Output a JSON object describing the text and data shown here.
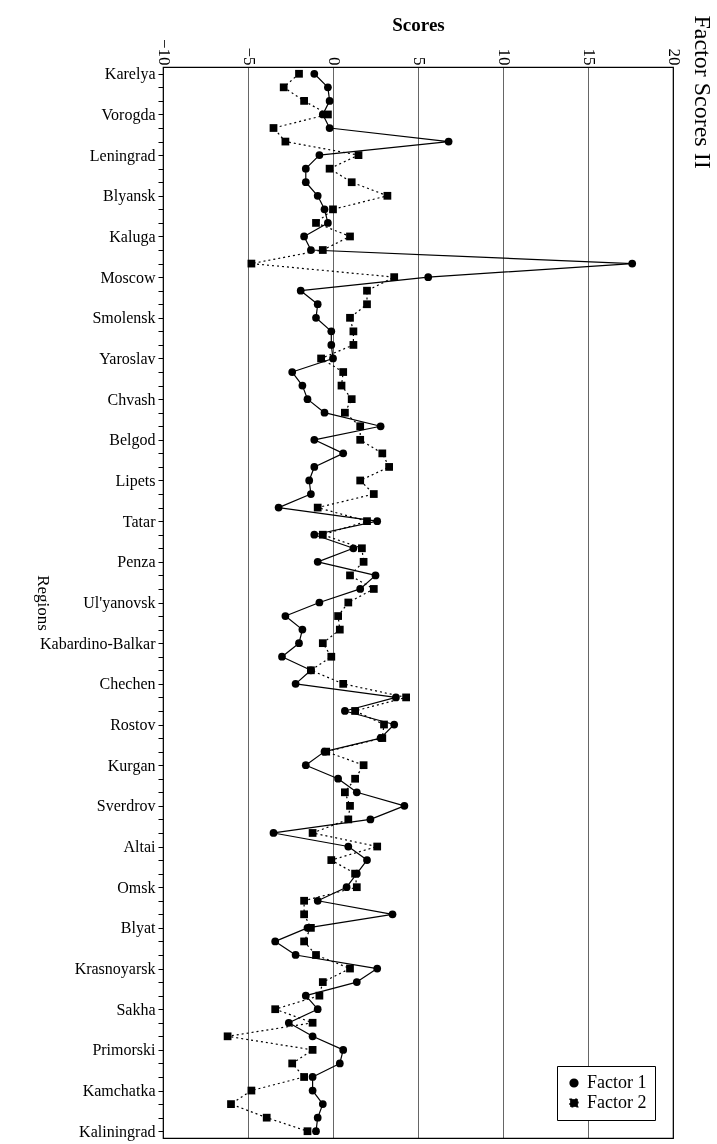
{
  "chart_data": {
    "type": "line",
    "title": "Factor Scores II",
    "xlabel": "Scores",
    "ylabel": "Regions",
    "orientation": "horizontal",
    "xlim": [
      -10,
      20
    ],
    "xticks": [
      -10,
      -5,
      0,
      5,
      10,
      15,
      20
    ],
    "grid": "x",
    "legend": "bottom right",
    "categories": [
      "Karelya",
      null,
      null,
      "Vorogda",
      null,
      null,
      "Leningrad",
      null,
      null,
      "Blyansk",
      null,
      null,
      "Kaluga",
      null,
      null,
      "Moscow",
      null,
      null,
      "Smolensk",
      null,
      null,
      "Yaroslav",
      null,
      null,
      "Chvash",
      null,
      null,
      "Belgod",
      null,
      null,
      "Lipets",
      null,
      null,
      "Tatar",
      null,
      null,
      "Penza",
      null,
      null,
      "Ul'yanovsk",
      null,
      null,
      "Kabardino-Balkar",
      null,
      null,
      "Chechen",
      null,
      null,
      "Rostov",
      null,
      null,
      "Kurgan",
      null,
      null,
      "Sverdrov",
      null,
      null,
      "Altai",
      null,
      null,
      "Omsk",
      null,
      null,
      "Blyat",
      null,
      null,
      "Krasnoyarsk",
      null,
      null,
      "Sakha",
      null,
      null,
      "Primorski",
      null,
      null,
      "Kamchatka",
      null,
      null,
      "Kaliningrad"
    ],
    "series": [
      {
        "name": "Factor 1",
        "color": "#000000",
        "marker": "circle",
        "line_style": "solid",
        "values": [
          -1.1,
          -0.3,
          -0.2,
          -0.6,
          -0.2,
          6.8,
          -0.8,
          -1.6,
          -1.6,
          -0.9,
          -0.5,
          -0.3,
          -1.7,
          -1.3,
          17.6,
          5.6,
          -1.9,
          -0.9,
          -1.0,
          -0.1,
          -0.1,
          0.0,
          -2.4,
          -1.8,
          -1.5,
          -0.5,
          2.8,
          -1.1,
          0.6,
          -1.1,
          -1.4,
          -1.3,
          -3.2,
          2.6,
          -1.1,
          1.2,
          -0.9,
          2.5,
          1.6,
          -0.8,
          -2.8,
          -1.8,
          -2.0,
          -3.0,
          -1.3,
          -2.2,
          3.7,
          0.7,
          3.6,
          2.8,
          -0.5,
          -1.6,
          0.3,
          1.4,
          4.2,
          2.2,
          -3.5,
          0.9,
          2.0,
          1.4,
          0.8,
          -0.9,
          3.5,
          -1.5,
          -3.4,
          -2.2,
          2.6,
          1.4,
          -1.6,
          -0.9,
          -2.6,
          -1.2,
          0.6,
          0.4,
          -1.2,
          -1.2,
          -0.6,
          -0.9,
          -1.0
        ]
      },
      {
        "name": "Factor 2",
        "color": "#000000",
        "marker": "square",
        "line_style": "dotted",
        "values": [
          -2.0,
          -2.9,
          -1.7,
          -0.3,
          -3.5,
          -2.8,
          1.5,
          -0.2,
          1.1,
          3.2,
          0.0,
          -1.0,
          1.0,
          -0.6,
          -4.8,
          3.6,
          2.0,
          2.0,
          1.0,
          1.2,
          1.2,
          -0.7,
          0.6,
          0.5,
          1.1,
          0.7,
          1.6,
          1.6,
          2.9,
          3.3,
          1.6,
          2.4,
          -0.9,
          2.0,
          -0.6,
          1.7,
          1.8,
          1.0,
          2.4,
          0.9,
          0.3,
          0.4,
          -0.6,
          -0.1,
          -1.3,
          0.6,
          4.3,
          1.3,
          3.0,
          2.9,
          -0.4,
          1.8,
          1.3,
          0.7,
          1.0,
          0.9,
          -1.2,
          2.6,
          -0.1,
          1.3,
          1.4,
          -1.7,
          -1.7,
          -1.3,
          -1.7,
          -1.0,
          1.0,
          -0.6,
          -0.8,
          -3.4,
          -1.2,
          -6.2,
          -1.2,
          -2.4,
          -1.7,
          -4.8,
          -6.0,
          -3.9,
          -1.5
        ]
      }
    ]
  }
}
